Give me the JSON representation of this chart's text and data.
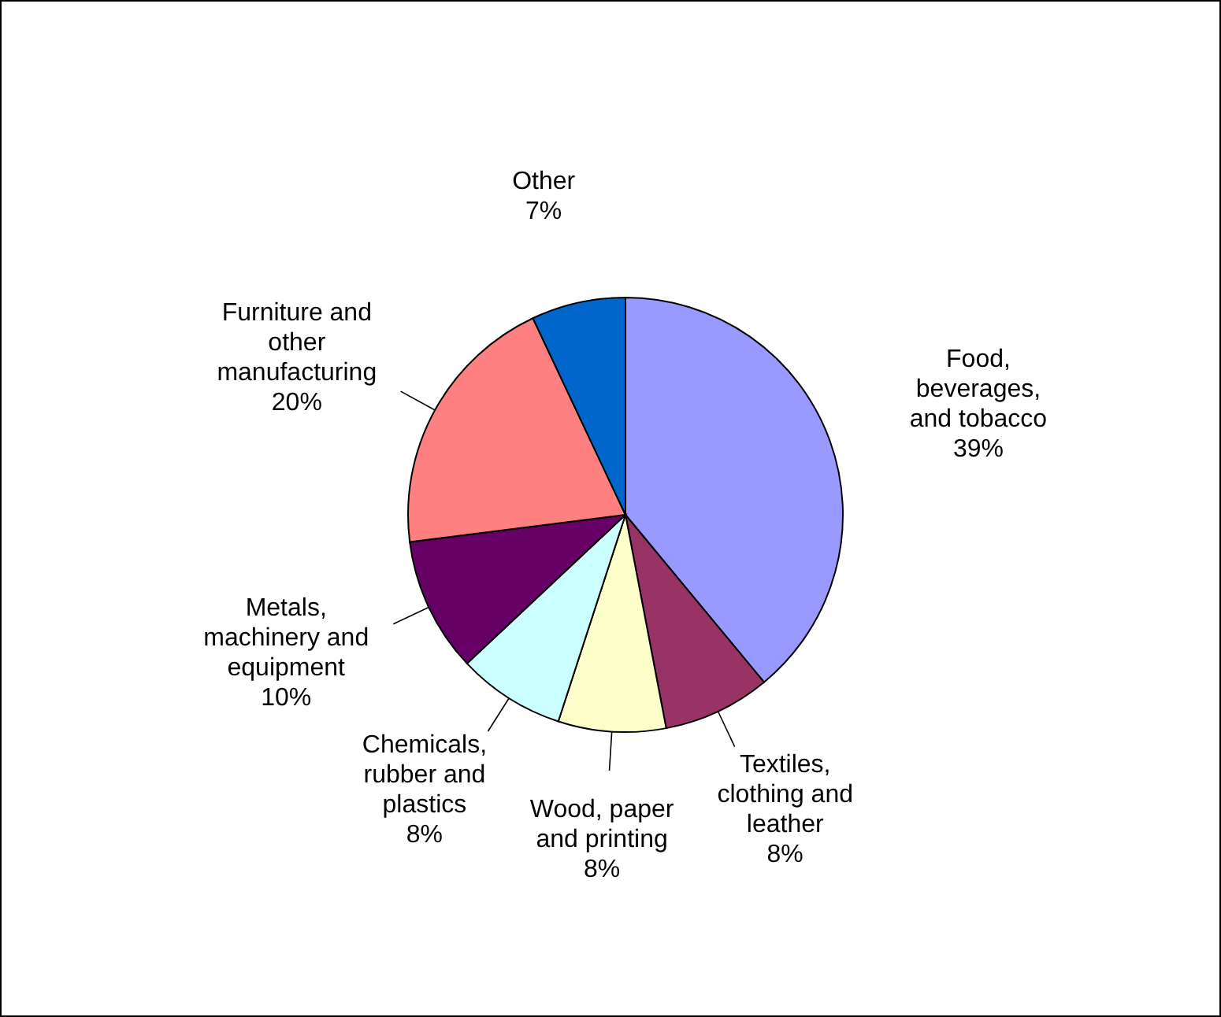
{
  "chart_data": {
    "type": "pie",
    "categories": [
      "Food, beverages, and tobacco",
      "Textiles, clothing and leather",
      "Wood, paper and printing",
      "Chemicals, rubber and plastics",
      "Metals, machinery and equipment",
      "Furniture and other manufacturing",
      "Other"
    ],
    "values": [
      39,
      8,
      8,
      8,
      10,
      20,
      7
    ],
    "colors": [
      "#9999ff",
      "#993366",
      "#ffffcc",
      "#ccffff",
      "#660066",
      "#ff8080",
      "#0066cc"
    ],
    "value_labels": [
      "39%",
      "8%",
      "8%",
      "8%",
      "10%",
      "20%",
      "7%"
    ]
  }
}
